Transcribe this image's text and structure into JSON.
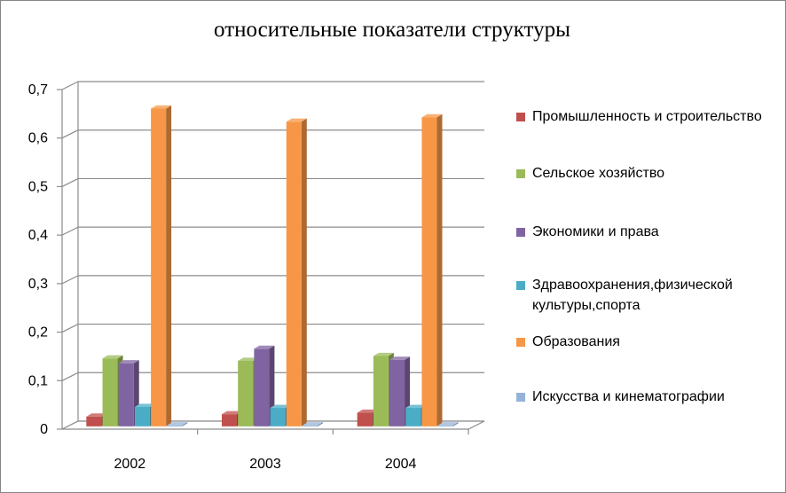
{
  "chart_data": {
    "type": "bar",
    "title": "относительные показатели структуры",
    "categories": [
      "2002",
      "2003",
      "2004"
    ],
    "ylim": [
      0,
      0.7
    ],
    "yticks": [
      "0",
      "0,1",
      "0,2",
      "0,3",
      "0,4",
      "0,5",
      "0,6",
      "0,7"
    ],
    "grid": true,
    "legend_position": "right",
    "series": [
      {
        "name": "Промышленность и строительство",
        "color": "#c0504d",
        "values": [
          0.02,
          0.025,
          0.028
        ]
      },
      {
        "name": "Сельское хозяйство",
        "color": "#9bbb59",
        "values": [
          0.14,
          0.135,
          0.145
        ]
      },
      {
        "name": "Экономики и права",
        "color": "#8064a2",
        "values": [
          0.13,
          0.16,
          0.137
        ]
      },
      {
        "name": "Здравоохранения,физической культуры,спорта",
        "color": "#4bacc6",
        "values": [
          0.04,
          0.038,
          0.038
        ]
      },
      {
        "name": "Образования",
        "color": "#f79646",
        "values": [
          0.655,
          0.628,
          0.637
        ]
      },
      {
        "name": "Искусства и кинематографии",
        "color": "#95b3d7",
        "values": [
          0.002,
          0.002,
          0.002
        ]
      }
    ]
  }
}
